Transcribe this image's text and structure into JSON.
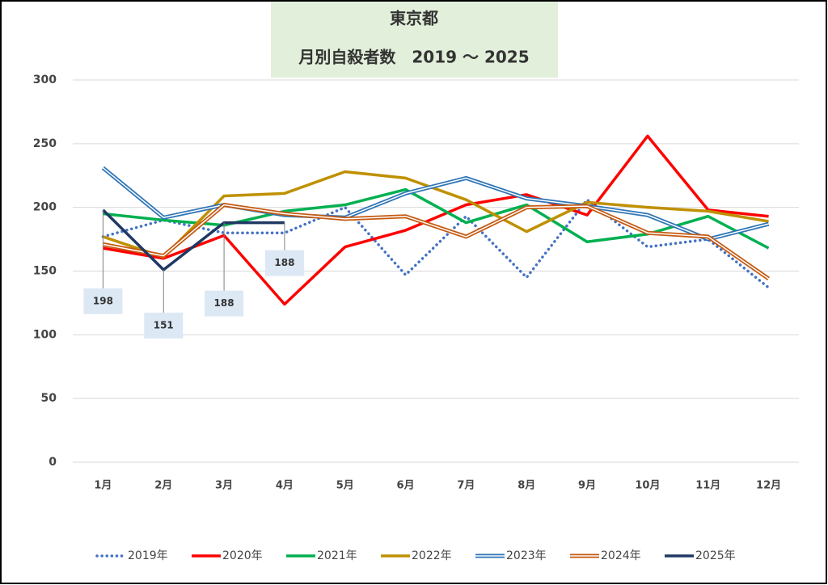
{
  "chart_data": {
    "type": "line",
    "title": "東京都",
    "subtitle": "月別自殺者数　2019 ～ 2025",
    "categories": [
      "1月",
      "2月",
      "3月",
      "4月",
      "5月",
      "6月",
      "7月",
      "8月",
      "9月",
      "10月",
      "11月",
      "12月"
    ],
    "ylim": [
      0,
      300
    ],
    "yticks": [
      0,
      50,
      100,
      150,
      200,
      250,
      300
    ],
    "grid": true,
    "legend": "bottom",
    "series": [
      {
        "name": "2019年",
        "color": "#4472c4",
        "style": "dotted",
        "values": [
          177,
          190,
          180,
          180,
          200,
          147,
          193,
          145,
          206,
          169,
          175,
          137
        ]
      },
      {
        "name": "2020年",
        "color": "#ff0000",
        "style": "solid",
        "values": [
          168,
          160,
          178,
          124,
          169,
          182,
          202,
          210,
          194,
          256,
          198,
          193
        ]
      },
      {
        "name": "2021年",
        "color": "#00b050",
        "style": "solid",
        "values": [
          195,
          190,
          186,
          197,
          202,
          214,
          188,
          202,
          173,
          179,
          193,
          168
        ]
      },
      {
        "name": "2022年",
        "color": "#bf9000",
        "style": "solid",
        "values": [
          177,
          161,
          209,
          211,
          228,
          223,
          206,
          181,
          204,
          200,
          197,
          189
        ]
      },
      {
        "name": "2023年",
        "color": "#2e75b6",
        "style": "double",
        "values": [
          231,
          192,
          202,
          194,
          192,
          211,
          223,
          207,
          201,
          194,
          175,
          187
        ]
      },
      {
        "name": "2024年",
        "color": "#c55a11",
        "style": "double",
        "values": [
          171,
          162,
          202,
          195,
          191,
          193,
          177,
          200,
          201,
          180,
          177,
          144
        ]
      },
      {
        "name": "2025年",
        "color": "#203864",
        "style": "solid",
        "data_labels": true,
        "values": [
          198,
          151,
          188,
          188,
          null,
          null,
          null,
          null,
          null,
          null,
          null,
          null
        ]
      }
    ]
  }
}
